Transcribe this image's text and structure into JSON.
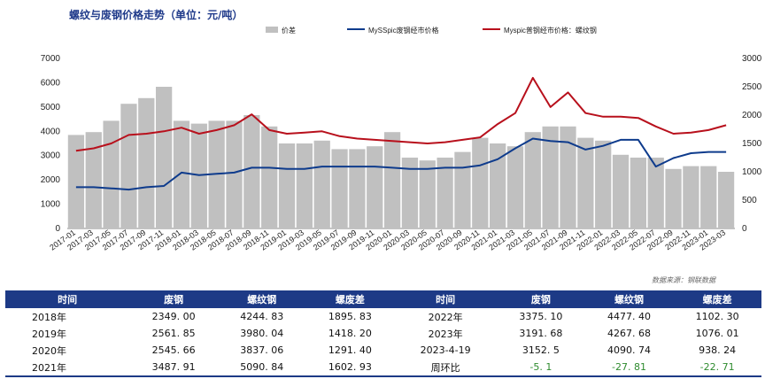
{
  "title": "螺纹与废钢价格走势（单位：元/吨）",
  "source": "数据来源：钢联数据",
  "colors": {
    "spread": "#c0c0c0",
    "scrap": "#0e3b8c",
    "rebar": "#b8101c"
  },
  "chart_data": {
    "type": "line",
    "legend_position": "top",
    "x": [
      "2017-01",
      "2017-03",
      "2017-05",
      "2017-07",
      "2017-09",
      "2017-11",
      "2018-01",
      "2018-03",
      "2018-05",
      "2018-07",
      "2018-09",
      "2018-11",
      "2019-01",
      "2019-03",
      "2019-05",
      "2019-07",
      "2019-09",
      "2019-11",
      "2020-01",
      "2020-03",
      "2020-05",
      "2020-07",
      "2020-09",
      "2020-11",
      "2021-01",
      "2021-03",
      "2021-05",
      "2021-07",
      "2021-09",
      "2021-11",
      "2022-01",
      "2022-03",
      "2022-05",
      "2022-07",
      "2022-09",
      "2022-11",
      "2023-01",
      "2023-03"
    ],
    "x_ticks": [
      "2017-01",
      "2017-03",
      "2017-05",
      "2017-07",
      "2017-09",
      "2017-11",
      "2018-01",
      "2018-03",
      "2018-05",
      "2018-07",
      "2018-09",
      "2018-11",
      "2019-01",
      "2019-03",
      "2019-05",
      "2019-07",
      "2019-09",
      "2019-11",
      "2020-01",
      "2020-03",
      "2020-05",
      "2020-07",
      "2020-09",
      "2020-11",
      "2021-01",
      "2021-03",
      "2021-05",
      "2021-07",
      "2021-09",
      "2021-11",
      "2022-01",
      "2022-03",
      "2022-05",
      "2022-07",
      "2022-09",
      "2022-11",
      "2023-01",
      "2023-03"
    ],
    "y_left_ticks": [
      "0",
      "1000",
      "2000",
      "3000",
      "4000",
      "5000",
      "6000",
      "7000"
    ],
    "y_right_ticks": [
      "0",
      "500",
      "1000",
      "1500",
      "2000",
      "2500",
      "3000"
    ],
    "ylim_left": [
      0,
      7000
    ],
    "ylim_right": [
      0,
      3000
    ],
    "series": [
      {
        "name": "价差",
        "type": "bar",
        "axis": "right",
        "values": [
          1650,
          1700,
          1900,
          2200,
          2300,
          2500,
          1900,
          1850,
          1900,
          1900,
          2000,
          1800,
          1500,
          1500,
          1550,
          1400,
          1400,
          1450,
          1700,
          1250,
          1200,
          1250,
          1350,
          1600,
          1500,
          1450,
          1700,
          1800,
          1800,
          1600,
          1550,
          1300,
          1250,
          1250,
          1050,
          1100,
          1100,
          1000
        ]
      },
      {
        "name": "MySSpic废钢经市价格",
        "type": "line",
        "axis": "left",
        "values": [
          1700,
          1700,
          1650,
          1600,
          1700,
          1750,
          2300,
          2200,
          2250,
          2300,
          2500,
          2500,
          2450,
          2450,
          2550,
          2550,
          2550,
          2550,
          2500,
          2450,
          2450,
          2500,
          2500,
          2600,
          2850,
          3300,
          3700,
          3600,
          3550,
          3250,
          3400,
          3650,
          3650,
          2550,
          2900,
          3100,
          3150,
          3150
        ]
      },
      {
        "name": "Myspic普钢经市价格：螺纹钢",
        "type": "line",
        "axis": "left",
        "values": [
          3200,
          3300,
          3500,
          3850,
          3900,
          4000,
          4150,
          3900,
          4050,
          4250,
          4700,
          4050,
          3900,
          3950,
          4000,
          3800,
          3700,
          3650,
          3600,
          3550,
          3500,
          3550,
          3650,
          3750,
          4300,
          4750,
          6200,
          5000,
          5600,
          4750,
          4600,
          4600,
          4550,
          4200,
          3900,
          3950,
          4050,
          4250
        ]
      }
    ]
  },
  "table": {
    "headers": [
      "时间",
      "废钢",
      "螺纹钢",
      "螺废差",
      "时间",
      "废钢",
      "螺纹钢",
      "螺废差"
    ],
    "rows": [
      [
        "2018年",
        "2349. 00",
        "4244. 83",
        "1895. 83",
        "2022年",
        "3375. 10",
        "4477. 40",
        "1102. 30"
      ],
      [
        "2019年",
        "2561. 85",
        "3980. 04",
        "1418. 20",
        "2023年",
        "3191. 68",
        "4267. 68",
        "1076. 01"
      ],
      [
        "2020年",
        "2545. 66",
        "3837. 06",
        "1291. 40",
        "2023-4-19",
        "3152. 5",
        "4090. 74",
        "938. 24"
      ],
      [
        "2021年",
        "3487. 91",
        "5090. 84",
        "1602. 93",
        "周环比",
        "-5. 1",
        "-27. 81",
        "-22. 71"
      ]
    ]
  }
}
